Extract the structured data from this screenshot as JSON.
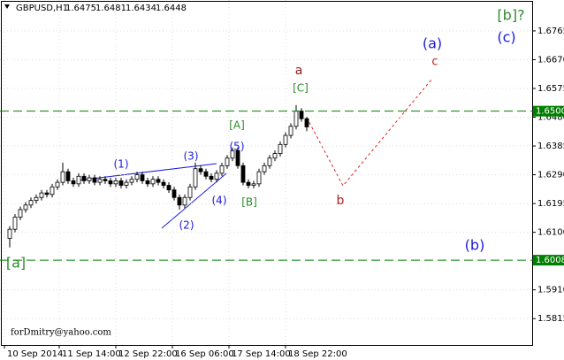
{
  "chart_data": {
    "type": "candlestick",
    "symbol": "GBPUSD,H1",
    "quote": {
      "open": 1.6475,
      "high": 1.6481,
      "low": 1.6434,
      "close": 1.6448
    },
    "x": [
      3,
      6,
      9,
      12,
      15,
      18,
      21,
      24,
      27,
      30,
      33,
      36,
      39,
      42,
      45,
      48,
      51,
      54,
      57,
      60,
      63,
      66,
      69,
      72,
      75,
      78,
      81,
      84,
      87,
      90,
      93,
      96,
      99,
      102,
      105,
      108,
      111,
      114,
      117,
      120,
      123,
      126,
      129,
      132,
      135,
      138,
      141,
      144,
      147,
      150,
      153,
      156,
      159,
      162,
      165,
      168,
      171
    ],
    "open": [
      1.608,
      1.611,
      1.615,
      1.6175,
      1.619,
      1.6205,
      1.6215,
      1.623,
      1.6225,
      1.625,
      1.6265,
      1.63,
      1.627,
      1.626,
      1.6285,
      1.627,
      1.628,
      1.6265,
      1.6275,
      1.627,
      1.626,
      1.627,
      1.6255,
      1.6265,
      1.6275,
      1.629,
      1.627,
      1.626,
      1.6275,
      1.6265,
      1.6255,
      1.624,
      1.6215,
      1.619,
      1.6215,
      1.625,
      1.631,
      1.63,
      1.6285,
      1.6275,
      1.6295,
      1.632,
      1.6345,
      1.637,
      1.632,
      1.6265,
      1.6255,
      1.626,
      1.63,
      1.632,
      1.6345,
      1.636,
      1.639,
      1.642,
      1.645,
      1.65,
      1.6475
    ],
    "high": [
      1.612,
      1.616,
      1.6185,
      1.62,
      1.6215,
      1.6225,
      1.624,
      1.624,
      1.626,
      1.6275,
      1.633,
      1.631,
      1.628,
      1.6295,
      1.6295,
      1.629,
      1.629,
      1.6285,
      1.6285,
      1.628,
      1.628,
      1.628,
      1.6275,
      1.6285,
      1.63,
      1.63,
      1.628,
      1.6285,
      1.6285,
      1.6275,
      1.6265,
      1.625,
      1.6225,
      1.6225,
      1.626,
      1.633,
      1.632,
      1.631,
      1.6295,
      1.6305,
      1.633,
      1.6355,
      1.638,
      1.638,
      1.633,
      1.6275,
      1.627,
      1.631,
      1.633,
      1.6355,
      1.637,
      1.64,
      1.643,
      1.646,
      1.652,
      1.651,
      1.6481
    ],
    "low": [
      1.605,
      1.61,
      1.614,
      1.6165,
      1.618,
      1.6195,
      1.6205,
      1.6215,
      1.6215,
      1.624,
      1.6255,
      1.626,
      1.625,
      1.625,
      1.626,
      1.626,
      1.6255,
      1.6255,
      1.626,
      1.625,
      1.625,
      1.6245,
      1.6245,
      1.6255,
      1.6265,
      1.626,
      1.625,
      1.625,
      1.6255,
      1.6245,
      1.623,
      1.6205,
      1.6175,
      1.618,
      1.6205,
      1.624,
      1.629,
      1.6275,
      1.6265,
      1.6265,
      1.6285,
      1.631,
      1.6335,
      1.631,
      1.6255,
      1.6245,
      1.6245,
      1.625,
      1.629,
      1.631,
      1.6335,
      1.635,
      1.638,
      1.641,
      1.644,
      1.6465,
      1.6434
    ],
    "close": [
      1.611,
      1.615,
      1.6175,
      1.619,
      1.6205,
      1.6215,
      1.623,
      1.6225,
      1.625,
      1.6265,
      1.63,
      1.627,
      1.626,
      1.6285,
      1.627,
      1.628,
      1.6265,
      1.6275,
      1.627,
      1.626,
      1.627,
      1.6255,
      1.6265,
      1.6275,
      1.629,
      1.627,
      1.626,
      1.6275,
      1.6265,
      1.6255,
      1.624,
      1.6215,
      1.619,
      1.6215,
      1.625,
      1.631,
      1.63,
      1.6285,
      1.6275,
      1.6295,
      1.632,
      1.6345,
      1.637,
      1.632,
      1.6265,
      1.6255,
      1.626,
      1.63,
      1.632,
      1.6345,
      1.636,
      1.639,
      1.642,
      1.645,
      1.65,
      1.6475,
      1.6448
    ],
    "xlim": [
      -2.5,
      299
    ],
    "xticks": [
      {
        "value": 0,
        "label": "10 Sep 2014"
      },
      {
        "value": 31,
        "label": "11 Sep 14:00"
      },
      {
        "value": 63,
        "label": "12 Sep 22:00"
      },
      {
        "value": 95,
        "label": "16 Sep 06:00"
      },
      {
        "value": 127,
        "label": "17 Sep 14:00"
      },
      {
        "value": 159,
        "label": "18 Sep 22:00"
      }
    ],
    "ylim": [
      1.5728,
      1.6867
    ],
    "yticks": [
      1.6765,
      {
        "value": 1.667,
        "label": "1.6670"
      },
      1.6575,
      {
        "value": 1.648,
        "label": "1.6480"
      },
      1.6385,
      {
        "value": 1.629,
        "label": "1.6290"
      },
      1.6195,
      {
        "value": 1.61,
        "label": "1.6100"
      },
      {
        "value": 1.591,
        "label": "1.5910"
      },
      1.5815
    ],
    "levels": [
      {
        "value": 1.65,
        "label": "1.6500"
      },
      1.6008
    ],
    "level_color": "#008000",
    "grid": true,
    "annotations": [
      {
        "text": "[b]?",
        "color": "#2e8b2e"
      },
      {
        "text": "(c)",
        "color": "#1a1adc"
      },
      {
        "text": "(a)",
        "color": "#1a1adc"
      },
      {
        "text": "c",
        "color": "#b22222"
      },
      {
        "text": "a",
        "color": "#8b1a1a"
      },
      {
        "text": "[C]",
        "color": "#2e8b2e"
      },
      {
        "text": "[A]",
        "color": "#2e8b2e"
      },
      {
        "text": "(5)",
        "color": "#1a1adc"
      },
      {
        "text": "(3)",
        "color": "#1a1adc"
      },
      {
        "text": "(1)",
        "color": "#1a1adc"
      },
      {
        "text": "(4)",
        "color": "#1a1adc"
      },
      {
        "text": "(2)",
        "color": "#1a1adc"
      },
      {
        "text": "[B]",
        "color": "#2e8b2e"
      },
      {
        "text": "b",
        "color": "#b22222"
      },
      {
        "text": "(b)",
        "color": "#1a1adc"
      },
      {
        "text": "[a]",
        "color": "#2e8b2e"
      }
    ],
    "footer": "forDmitry@yahoo.com"
  }
}
